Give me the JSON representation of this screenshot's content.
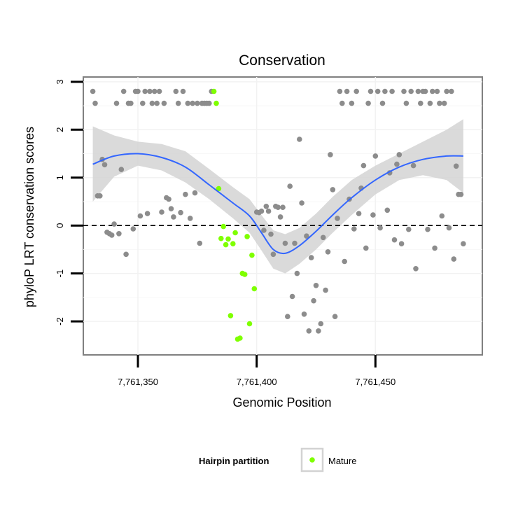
{
  "chart_data": {
    "type": "scatter",
    "title": "Conservation",
    "xlabel": "Genomic Position",
    "ylabel": "phyloP LRT conservation scores",
    "xlim": [
      7761327,
      7761495
    ],
    "ylim": [
      -2.7,
      3.1
    ],
    "x_ticks": [
      7761350,
      7761400,
      7761450
    ],
    "x_tick_labels": [
      "7,761,350",
      "7,761,400",
      "7,761,450"
    ],
    "y_ticks": [
      -2,
      -1,
      0,
      1,
      2,
      3
    ],
    "y_tick_labels": [
      "-2",
      "-1",
      "0",
      "1",
      "2",
      "3"
    ],
    "grid": true,
    "reference_line": {
      "y": 0,
      "style": "dashed"
    },
    "legend": {
      "title": "Hairpin partition",
      "position": "bottom",
      "entries": [
        {
          "label": "Mature",
          "color": "#7fff00"
        }
      ]
    },
    "colors": {
      "other": "#8c8c8c",
      "mature": "#7fff00",
      "smooth": "#3366ff",
      "band": "#d3d3d3"
    },
    "series": [
      {
        "name": "",
        "color": "#8c8c8c",
        "points": [
          [
            7761331,
            2.8
          ],
          [
            7761332,
            2.55
          ],
          [
            7761333,
            0.62
          ],
          [
            7761334,
            0.62
          ],
          [
            7761335,
            1.38
          ],
          [
            7761336,
            1.27
          ],
          [
            7761337,
            -0.14
          ],
          [
            7761338,
            -0.17
          ],
          [
            7761339,
            -0.2
          ],
          [
            7761340,
            0.03
          ],
          [
            7761341,
            2.55
          ],
          [
            7761342,
            -0.17
          ],
          [
            7761343,
            1.17
          ],
          [
            7761344,
            2.8
          ],
          [
            7761345,
            -0.6
          ],
          [
            7761346,
            2.55
          ],
          [
            7761347,
            2.55
          ],
          [
            7761348,
            -0.07
          ],
          [
            7761349,
            2.8
          ],
          [
            7761350,
            2.8
          ],
          [
            7761351,
            0.2
          ],
          [
            7761352,
            2.55
          ],
          [
            7761353,
            2.8
          ],
          [
            7761354,
            0.25
          ],
          [
            7761355,
            2.8
          ],
          [
            7761356,
            2.55
          ],
          [
            7761357,
            2.8
          ],
          [
            7761358,
            2.55
          ],
          [
            7761359,
            2.8
          ],
          [
            7761360,
            0.28
          ],
          [
            7761361,
            2.55
          ],
          [
            7761362,
            0.58
          ],
          [
            7761363,
            0.55
          ],
          [
            7761364,
            0.35
          ],
          [
            7761365,
            0.18
          ],
          [
            7761366,
            2.8
          ],
          [
            7761367,
            2.55
          ],
          [
            7761368,
            0.27
          ],
          [
            7761369,
            2.8
          ],
          [
            7761370,
            0.65
          ],
          [
            7761371,
            2.55
          ],
          [
            7761372,
            0.15
          ],
          [
            7761373,
            2.55
          ],
          [
            7761374,
            0.68
          ],
          [
            7761375,
            2.55
          ],
          [
            7761376,
            -0.37
          ],
          [
            7761377,
            2.55
          ],
          [
            7761378,
            2.55
          ],
          [
            7761379,
            2.55
          ],
          [
            7761380,
            2.55
          ],
          [
            7761381,
            2.8
          ],
          [
            7761400,
            0.28
          ],
          [
            7761401,
            0.27
          ],
          [
            7761402,
            0.3
          ],
          [
            7761403,
            -0.1
          ],
          [
            7761404,
            0.4
          ],
          [
            7761405,
            0.3
          ],
          [
            7761406,
            -0.18
          ],
          [
            7761407,
            -0.6
          ],
          [
            7761408,
            0.4
          ],
          [
            7761409,
            0.38
          ],
          [
            7761410,
            0.18
          ],
          [
            7761411,
            0.38
          ],
          [
            7761412,
            -0.37
          ],
          [
            7761413,
            -1.9
          ],
          [
            7761414,
            0.82
          ],
          [
            7761415,
            -1.48
          ],
          [
            7761416,
            -0.37
          ],
          [
            7761417,
            -1.0
          ],
          [
            7761418,
            1.8
          ],
          [
            7761419,
            0.47
          ],
          [
            7761420,
            -1.85
          ],
          [
            7761421,
            -0.22
          ],
          [
            7761422,
            -2.2
          ],
          [
            7761423,
            -0.67
          ],
          [
            7761424,
            -1.57
          ],
          [
            7761425,
            -1.25
          ],
          [
            7761426,
            -2.2
          ],
          [
            7761427,
            -2.05
          ],
          [
            7761428,
            -0.25
          ],
          [
            7761429,
            -1.35
          ],
          [
            7761430,
            -0.55
          ],
          [
            7761431,
            1.48
          ],
          [
            7761432,
            0.75
          ],
          [
            7761433,
            -1.9
          ],
          [
            7761434,
            0.15
          ],
          [
            7761435,
            2.8
          ],
          [
            7761436,
            2.55
          ],
          [
            7761437,
            -0.75
          ],
          [
            7761438,
            2.8
          ],
          [
            7761439,
            0.55
          ],
          [
            7761440,
            2.55
          ],
          [
            7761441,
            -0.07
          ],
          [
            7761442,
            2.8
          ],
          [
            7761443,
            0.25
          ],
          [
            7761444,
            0.78
          ],
          [
            7761445,
            1.25
          ],
          [
            7761446,
            -0.47
          ],
          [
            7761447,
            2.55
          ],
          [
            7761448,
            2.8
          ],
          [
            7761449,
            0.22
          ],
          [
            7761450,
            1.45
          ],
          [
            7761451,
            2.8
          ],
          [
            7761452,
            -0.05
          ],
          [
            7761453,
            2.55
          ],
          [
            7761454,
            2.8
          ],
          [
            7761455,
            0.32
          ],
          [
            7761456,
            1.1
          ],
          [
            7761457,
            2.8
          ],
          [
            7761458,
            -0.3
          ],
          [
            7761459,
            1.28
          ],
          [
            7761460,
            1.48
          ],
          [
            7761461,
            -0.38
          ],
          [
            7761462,
            2.8
          ],
          [
            7761463,
            2.55
          ],
          [
            7761464,
            -0.08
          ],
          [
            7761465,
            2.8
          ],
          [
            7761466,
            1.25
          ],
          [
            7761467,
            -0.9
          ],
          [
            7761468,
            2.8
          ],
          [
            7761469,
            2.55
          ],
          [
            7761470,
            2.8
          ],
          [
            7761471,
            2.8
          ],
          [
            7761472,
            -0.08
          ],
          [
            7761473,
            2.55
          ],
          [
            7761474,
            2.8
          ],
          [
            7761475,
            -0.47
          ],
          [
            7761476,
            2.8
          ],
          [
            7761477,
            2.55
          ],
          [
            7761478,
            0.2
          ],
          [
            7761479,
            2.55
          ],
          [
            7761480,
            2.8
          ],
          [
            7761481,
            -0.05
          ],
          [
            7761482,
            2.8
          ],
          [
            7761483,
            -0.7
          ],
          [
            7761484,
            1.24
          ],
          [
            7761485,
            0.65
          ],
          [
            7761486,
            0.65
          ],
          [
            7761487,
            -0.38
          ]
        ]
      },
      {
        "name": "Mature",
        "color": "#7fff00",
        "points": [
          [
            7761382,
            2.8
          ],
          [
            7761383,
            2.55
          ],
          [
            7761384,
            0.77
          ],
          [
            7761385,
            -0.27
          ],
          [
            7761386,
            -0.02
          ],
          [
            7761387,
            -0.4
          ],
          [
            7761388,
            -0.28
          ],
          [
            7761389,
            -1.88
          ],
          [
            7761390,
            -0.38
          ],
          [
            7761391,
            -0.15
          ],
          [
            7761392,
            -2.37
          ],
          [
            7761393,
            -2.35
          ],
          [
            7761394,
            -1.0
          ],
          [
            7761395,
            -1.02
          ],
          [
            7761396,
            -0.23
          ],
          [
            7761397,
            -2.05
          ],
          [
            7761398,
            -0.62
          ],
          [
            7761399,
            -1.32
          ]
        ]
      }
    ],
    "smooth_fit": {
      "x": [
        7761331,
        7761340,
        7761350,
        7761360,
        7761370,
        7761380,
        7761390,
        7761397,
        7761402,
        7761407,
        7761412,
        7761418,
        7761425,
        7761432,
        7761440,
        7761450,
        7761460,
        7761470,
        7761480,
        7761487
      ],
      "y": [
        1.28,
        1.45,
        1.5,
        1.42,
        1.22,
        0.85,
        0.47,
        0.2,
        -0.15,
        -0.5,
        -0.58,
        -0.42,
        -0.12,
        0.22,
        0.58,
        0.95,
        1.22,
        1.38,
        1.45,
        1.45
      ],
      "lower": [
        0.5,
        1.02,
        1.25,
        1.15,
        0.9,
        0.55,
        0.15,
        -0.15,
        -0.52,
        -0.9,
        -1.0,
        -0.8,
        -0.5,
        -0.15,
        0.22,
        0.65,
        0.95,
        1.05,
        0.95,
        0.68
      ],
      "upper": [
        2.07,
        1.88,
        1.75,
        1.7,
        1.55,
        1.18,
        0.8,
        0.55,
        0.22,
        -0.1,
        -0.18,
        -0.05,
        0.25,
        0.6,
        0.95,
        1.25,
        1.5,
        1.75,
        2.0,
        2.22
      ]
    }
  }
}
